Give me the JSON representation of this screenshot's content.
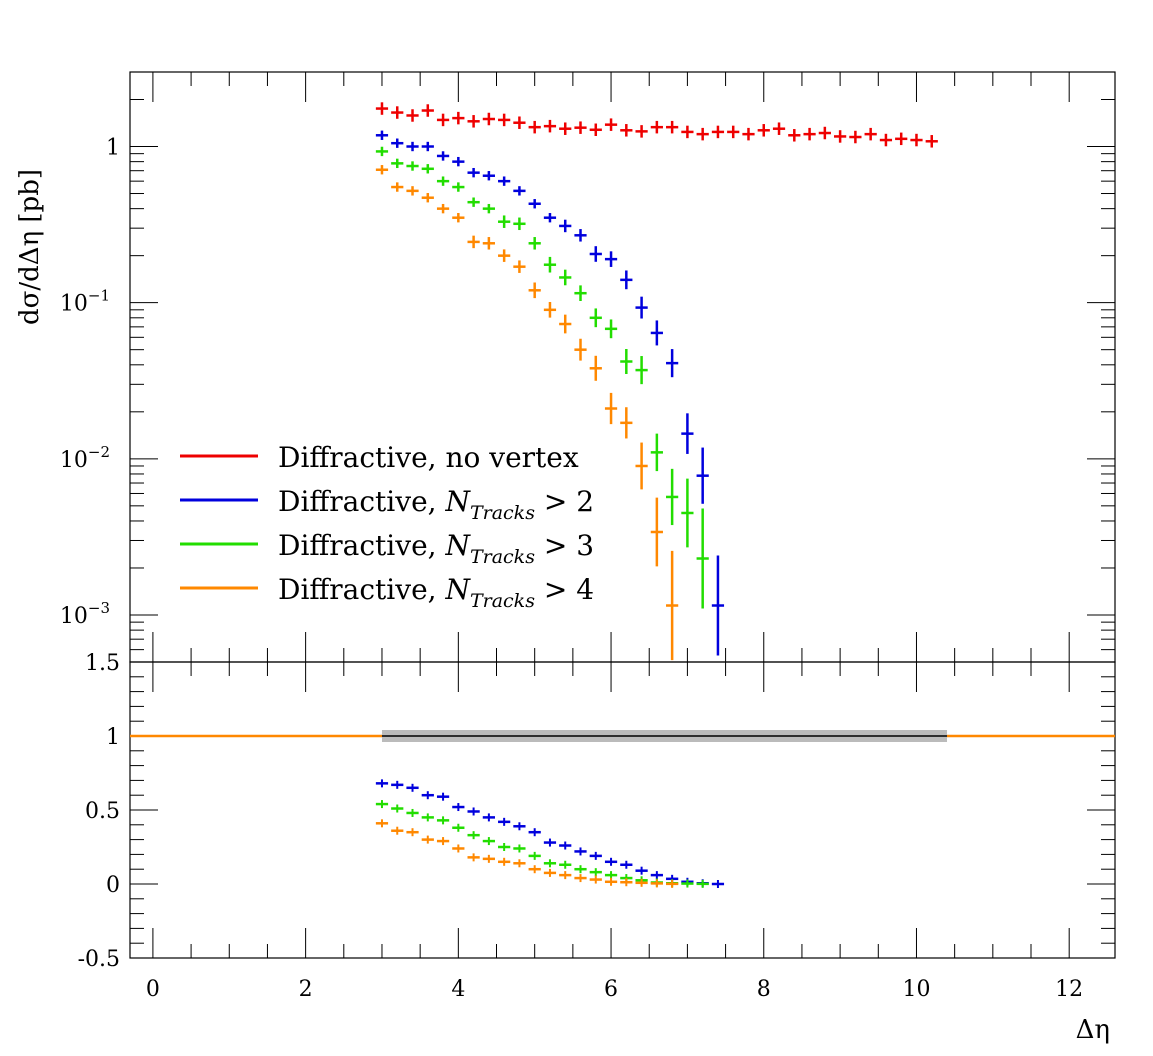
{
  "chart_data": [
    {
      "panel": "main",
      "type": "scatter",
      "y_scale": "log",
      "ylabel": "dσ/dΔη [pb]",
      "xlim": [
        -0.3,
        12.6
      ],
      "ylim": [
        0.0005,
        3.0
      ],
      "y_tick_labels": [
        {
          "value": 1,
          "text": "1"
        },
        {
          "value": 0.1,
          "base": "10",
          "exp": "−1"
        },
        {
          "value": 0.01,
          "base": "10",
          "exp": "−2"
        },
        {
          "value": 0.001,
          "base": "10",
          "exp": "−3"
        }
      ],
      "legend_position": "bottom-left",
      "series": [
        {
          "name_main": "Diffractive, no vertex",
          "name_sub": "",
          "name_tail": "",
          "color": "#ee0000",
          "x": [
            3.0,
            3.2,
            3.4,
            3.6,
            3.8,
            4.0,
            4.2,
            4.4,
            4.6,
            4.8,
            5.0,
            5.2,
            5.4,
            5.6,
            5.8,
            6.0,
            6.2,
            6.4,
            6.6,
            6.8,
            7.0,
            7.2,
            7.4,
            7.6,
            7.8,
            8.0,
            8.2,
            8.4,
            8.6,
            8.8,
            9.0,
            9.2,
            9.4,
            9.6,
            9.8,
            10.0,
            10.2
          ],
          "y": [
            1.75,
            1.65,
            1.58,
            1.7,
            1.48,
            1.52,
            1.45,
            1.5,
            1.48,
            1.42,
            1.33,
            1.35,
            1.3,
            1.32,
            1.28,
            1.38,
            1.27,
            1.25,
            1.33,
            1.33,
            1.24,
            1.2,
            1.24,
            1.24,
            1.2,
            1.27,
            1.3,
            1.18,
            1.2,
            1.22,
            1.16,
            1.15,
            1.2,
            1.1,
            1.12,
            1.1,
            1.08
          ],
          "err": [
            0.04,
            0.04,
            0.04,
            0.04,
            0.04,
            0.04,
            0.04,
            0.04,
            0.04,
            0.04,
            0.04,
            0.04,
            0.04,
            0.04,
            0.04,
            0.04,
            0.04,
            0.04,
            0.04,
            0.04,
            0.04,
            0.04,
            0.04,
            0.04,
            0.04,
            0.04,
            0.04,
            0.04,
            0.04,
            0.04,
            0.04,
            0.04,
            0.04,
            0.04,
            0.04,
            0.04,
            0.04
          ]
        },
        {
          "name_main": "Diffractive, ",
          "name_sub": "Tracks",
          "name_tail": " > 2",
          "color": "#0000dd",
          "x": [
            3.0,
            3.2,
            3.4,
            3.6,
            3.8,
            4.0,
            4.2,
            4.4,
            4.6,
            4.8,
            5.0,
            5.2,
            5.4,
            5.6,
            5.8,
            6.0,
            6.2,
            6.4,
            6.6,
            6.8,
            7.0,
            7.2,
            7.4
          ],
          "y": [
            1.18,
            1.05,
            1.0,
            1.0,
            0.87,
            0.8,
            0.68,
            0.65,
            0.6,
            0.52,
            0.43,
            0.35,
            0.31,
            0.27,
            0.205,
            0.19,
            0.14,
            0.093,
            0.064,
            0.041,
            0.0145,
            0.0078,
            0.00115
          ],
          "err": [
            0.03,
            0.03,
            0.03,
            0.03,
            0.03,
            0.03,
            0.03,
            0.03,
            0.03,
            0.03,
            0.03,
            0.03,
            0.04,
            0.04,
            0.05,
            0.05,
            0.06,
            0.07,
            0.08,
            0.09,
            0.13,
            0.18,
            0.32
          ]
        },
        {
          "name_main": "Diffractive, ",
          "name_sub": "Tracks",
          "name_tail": " > 3",
          "color": "#22dd00",
          "x": [
            3.0,
            3.2,
            3.4,
            3.6,
            3.8,
            4.0,
            4.2,
            4.4,
            4.6,
            4.8,
            5.0,
            5.2,
            5.4,
            5.6,
            5.8,
            6.0,
            6.2,
            6.4,
            6.6,
            6.8,
            7.0,
            7.2
          ],
          "y": [
            0.93,
            0.78,
            0.75,
            0.72,
            0.6,
            0.55,
            0.44,
            0.4,
            0.33,
            0.32,
            0.24,
            0.175,
            0.145,
            0.115,
            0.08,
            0.068,
            0.042,
            0.037,
            0.011,
            0.0057,
            0.0045,
            0.0023
          ],
          "err": [
            0.03,
            0.03,
            0.03,
            0.03,
            0.03,
            0.03,
            0.03,
            0.03,
            0.04,
            0.04,
            0.04,
            0.05,
            0.05,
            0.05,
            0.06,
            0.06,
            0.08,
            0.09,
            0.12,
            0.18,
            0.22,
            0.32
          ]
        },
        {
          "name_main": "Diffractive, ",
          "name_sub": "Tracks",
          "name_tail": " > 4",
          "color": "#ff8800",
          "x": [
            3.0,
            3.2,
            3.4,
            3.6,
            3.8,
            4.0,
            4.2,
            4.4,
            4.6,
            4.8,
            5.0,
            5.2,
            5.4,
            5.6,
            5.8,
            6.0,
            6.2,
            6.4,
            6.6,
            6.8
          ],
          "y": [
            0.71,
            0.55,
            0.52,
            0.47,
            0.4,
            0.35,
            0.245,
            0.24,
            0.2,
            0.17,
            0.12,
            0.09,
            0.073,
            0.05,
            0.038,
            0.021,
            0.017,
            0.009,
            0.0034,
            0.00115
          ],
          "err": [
            0.03,
            0.03,
            0.03,
            0.03,
            0.03,
            0.03,
            0.04,
            0.04,
            0.04,
            0.04,
            0.05,
            0.05,
            0.06,
            0.07,
            0.08,
            0.1,
            0.1,
            0.15,
            0.22,
            0.35
          ]
        }
      ]
    },
    {
      "panel": "ratio",
      "type": "scatter",
      "y_scale": "linear",
      "xlabel": "Δη",
      "xlim": [
        -0.3,
        12.6
      ],
      "ylim": [
        -0.5,
        1.5
      ],
      "x_ticks": [
        0,
        2,
        4,
        6,
        8,
        10,
        12
      ],
      "y_ticks": [
        -0.5,
        0,
        0.5,
        1,
        1.5
      ],
      "y_tick_labels": [
        "-0.5",
        "0",
        "0.5",
        "1",
        "1.5"
      ],
      "reference_line": {
        "y": 1,
        "color": "#ff8800"
      },
      "reference_band": {
        "x_range": [
          3.0,
          10.4
        ],
        "y": 1,
        "color": "#bbbbbb",
        "line_color": "#000000"
      },
      "series": [
        {
          "name": "N Tracks > 2",
          "color": "#0000dd",
          "x": [
            3.0,
            3.2,
            3.4,
            3.6,
            3.8,
            4.0,
            4.2,
            4.4,
            4.6,
            4.8,
            5.0,
            5.2,
            5.4,
            5.6,
            5.8,
            6.0,
            6.2,
            6.4,
            6.6,
            6.8,
            7.0,
            7.2,
            7.4
          ],
          "y": [
            0.68,
            0.67,
            0.65,
            0.6,
            0.59,
            0.52,
            0.49,
            0.45,
            0.42,
            0.39,
            0.35,
            0.28,
            0.26,
            0.22,
            0.19,
            0.15,
            0.13,
            0.09,
            0.06,
            0.035,
            0.015,
            0.005,
            0.0
          ]
        },
        {
          "name": "N Tracks > 3",
          "color": "#22dd00",
          "x": [
            3.0,
            3.2,
            3.4,
            3.6,
            3.8,
            4.0,
            4.2,
            4.4,
            4.6,
            4.8,
            5.0,
            5.2,
            5.4,
            5.6,
            5.8,
            6.0,
            6.2,
            6.4,
            6.6,
            6.8,
            7.0,
            7.2
          ],
          "y": [
            0.54,
            0.51,
            0.48,
            0.45,
            0.43,
            0.38,
            0.33,
            0.29,
            0.25,
            0.24,
            0.19,
            0.14,
            0.13,
            0.1,
            0.08,
            0.06,
            0.04,
            0.025,
            0.01,
            0.005,
            0.003,
            0.001
          ]
        },
        {
          "name": "N Tracks > 4",
          "color": "#ff8800",
          "x": [
            3.0,
            3.2,
            3.4,
            3.6,
            3.8,
            4.0,
            4.2,
            4.4,
            4.6,
            4.8,
            5.0,
            5.2,
            5.4,
            5.6,
            5.8,
            6.0,
            6.2,
            6.4,
            6.6,
            6.8
          ],
          "y": [
            0.41,
            0.36,
            0.35,
            0.3,
            0.29,
            0.24,
            0.18,
            0.17,
            0.15,
            0.14,
            0.1,
            0.075,
            0.06,
            0.04,
            0.03,
            0.015,
            0.012,
            0.008,
            0.004,
            0.001
          ]
        }
      ]
    }
  ]
}
